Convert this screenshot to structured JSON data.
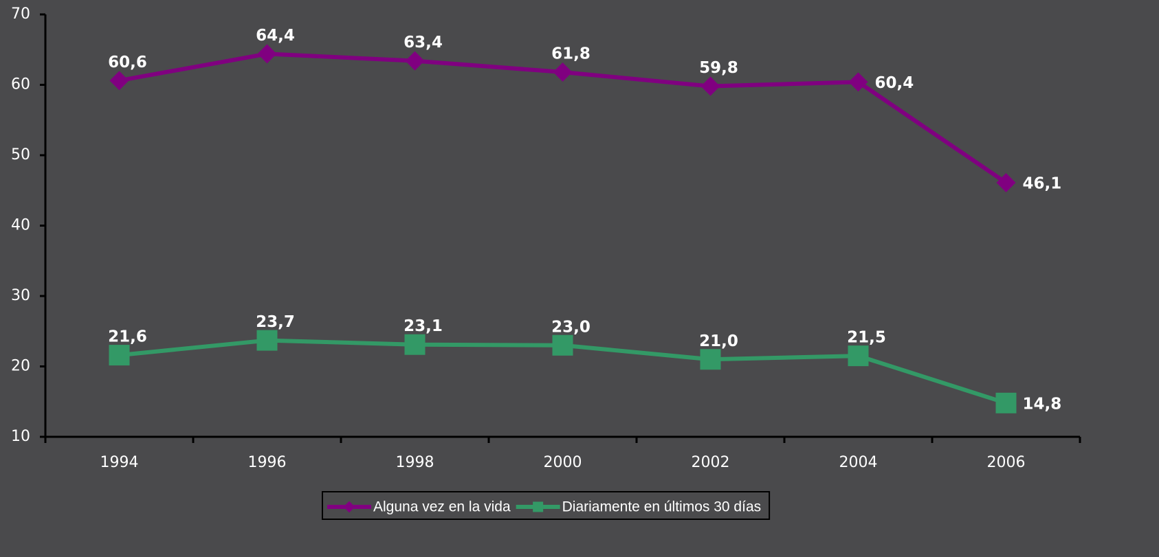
{
  "chart_data": {
    "type": "line",
    "categories": [
      "1994",
      "1996",
      "1998",
      "2000",
      "2002",
      "2004",
      "2006"
    ],
    "series": [
      {
        "name": "Alguna vez en la vida",
        "color": "#800080",
        "marker": "diamond",
        "values": [
          60.6,
          64.4,
          63.4,
          61.8,
          59.8,
          60.4,
          46.1
        ],
        "value_labels": [
          "60,6",
          "64,4",
          "63,4",
          "61,8",
          "59,8",
          "60,4",
          "46,1"
        ]
      },
      {
        "name": "Diariamente en últimos 30 días",
        "color": "#339966",
        "marker": "square",
        "values": [
          21.6,
          23.7,
          23.1,
          23.0,
          21.0,
          21.5,
          14.8
        ],
        "value_labels": [
          "21,6",
          "23,7",
          "23,1",
          "23,0",
          "21,0",
          "21,5",
          "14,8"
        ]
      }
    ],
    "ylim": [
      10,
      70
    ],
    "yticks": [
      10,
      20,
      30,
      40,
      50,
      60,
      70
    ],
    "legend": "bottom"
  }
}
